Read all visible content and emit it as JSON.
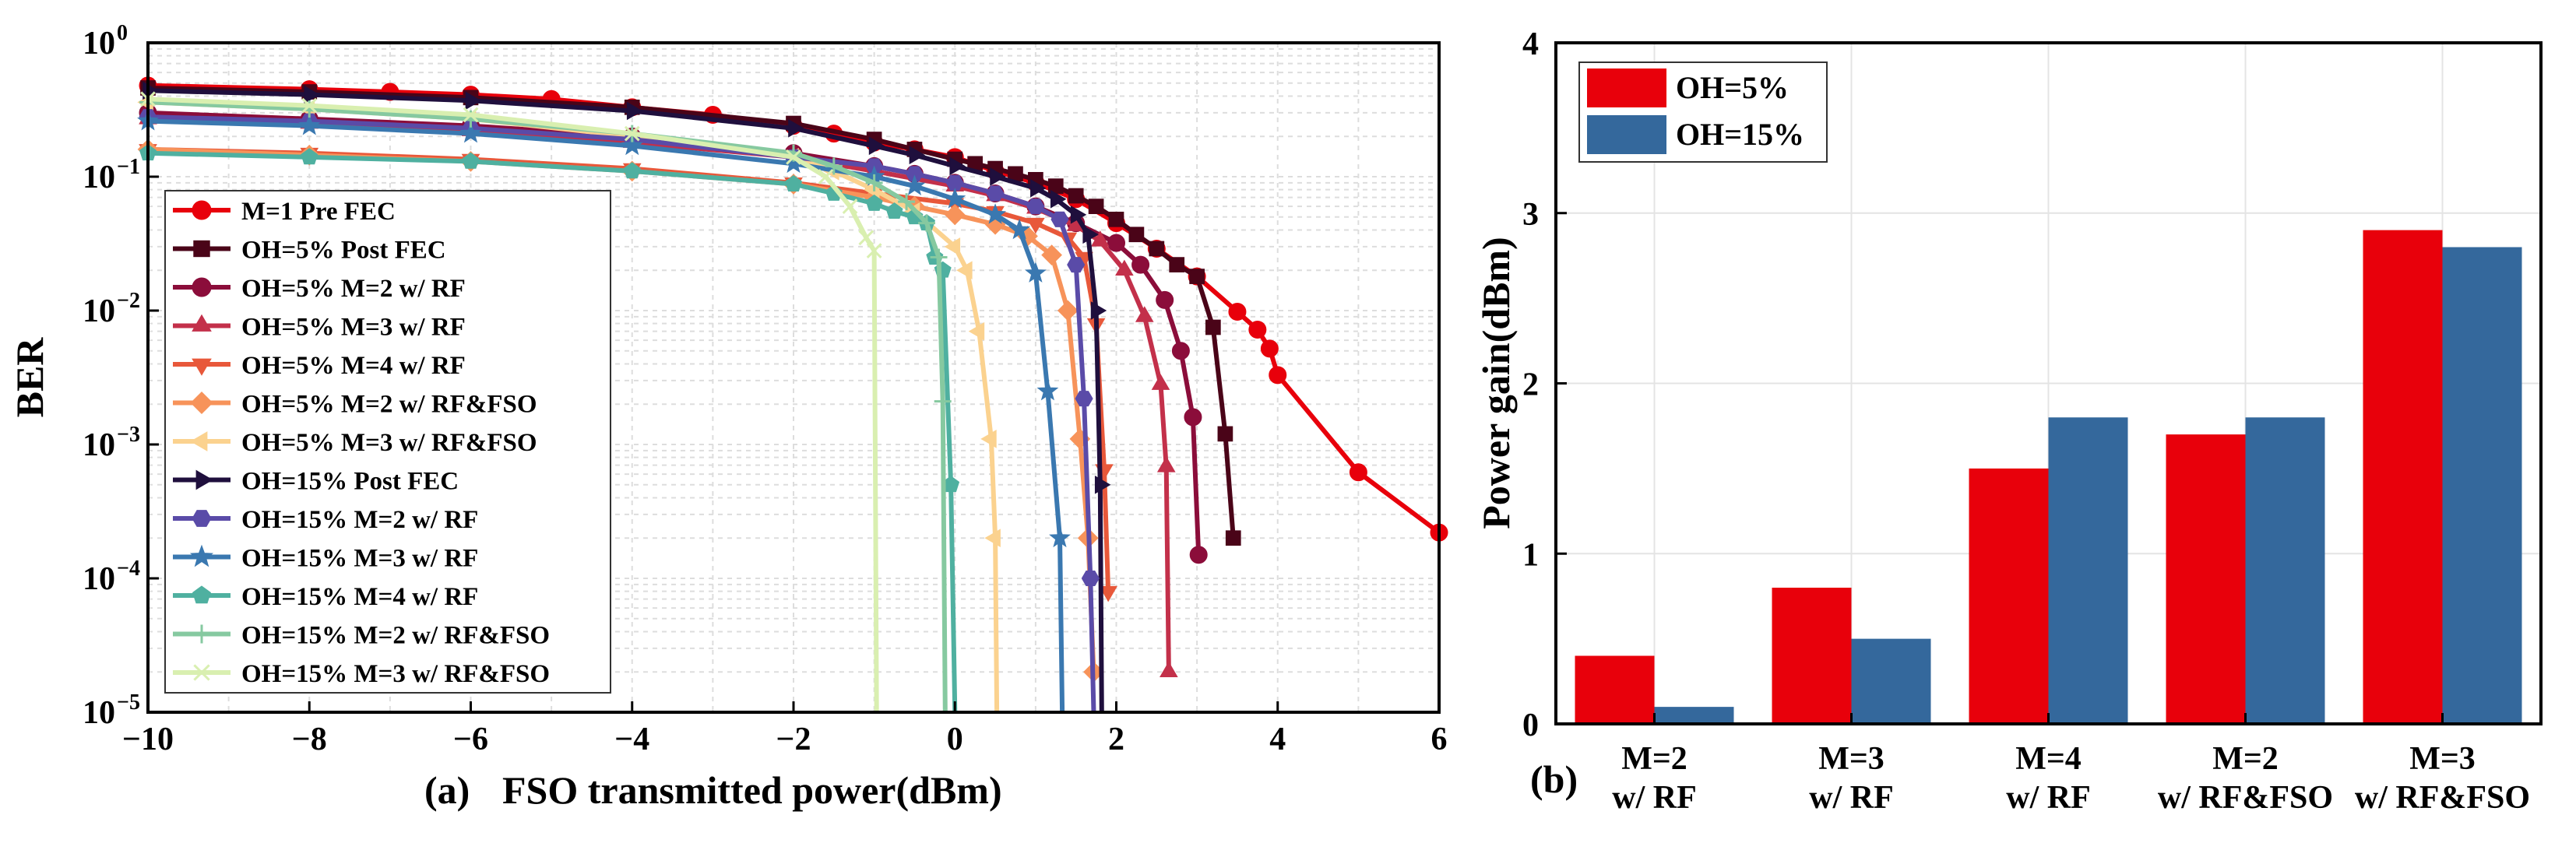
{
  "chart_data": [
    {
      "type": "line",
      "panel_label": "(a)",
      "xlabel": "FSO transmitted power(dBm)",
      "ylabel": "BER",
      "xlim": [
        -10,
        6
      ],
      "ylim_log10": [
        -5,
        0
      ],
      "xticks": [
        -10,
        -8,
        -6,
        -4,
        -2,
        0,
        2,
        4,
        6
      ],
      "xtick_labels": [
        "−10",
        "−8",
        "−6",
        "−4",
        "−2",
        "0",
        "2",
        "4",
        "6"
      ],
      "ytick_bases": [
        "10",
        "10",
        "10",
        "10",
        "10",
        "10"
      ],
      "ytick_exps": [
        "−5",
        "−4",
        "−3",
        "−2",
        "−1",
        "0"
      ],
      "ytick_values_log10": [
        -5,
        -4,
        -3,
        -2,
        -1,
        0
      ],
      "grid": true,
      "legend_position": "left",
      "series": [
        {
          "name": "M=1 Pre FEC",
          "color": "#e8000b",
          "marker": "circle",
          "x": [
            -10,
            -8,
            -7,
            -6,
            -5,
            -4,
            -3,
            -2,
            -1.5,
            -1,
            -0.5,
            0,
            0.5,
            1,
            1.5,
            2,
            2.5,
            3,
            3.5,
            3.75,
            3.9,
            4,
            5,
            6
          ],
          "y": [
            0.48,
            0.45,
            0.43,
            0.41,
            0.38,
            0.33,
            0.29,
            0.24,
            0.21,
            0.18,
            0.16,
            0.14,
            0.11,
            0.09,
            0.068,
            0.045,
            0.029,
            0.018,
            0.0098,
            0.0072,
            0.0052,
            0.0033,
            0.00062,
            0.00022
          ]
        },
        {
          "name": "OH=5% Post FEC",
          "color": "#4a0418",
          "marker": "square",
          "x": [
            -10,
            -8,
            -6,
            -4,
            -2,
            -1,
            -0.5,
            0,
            0.25,
            0.5,
            0.75,
            1,
            1.25,
            1.5,
            1.75,
            2,
            2.25,
            2.5,
            2.75,
            3,
            3.2,
            3.35,
            3.45
          ],
          "y": [
            0.46,
            0.43,
            0.39,
            0.33,
            0.25,
            0.19,
            0.16,
            0.135,
            0.125,
            0.115,
            0.105,
            0.095,
            0.085,
            0.072,
            0.06,
            0.048,
            0.037,
            0.029,
            0.022,
            0.018,
            0.0075,
            0.0012,
            0.0002
          ]
        },
        {
          "name": "OH=5% M=2 w/ RF",
          "color": "#8b0d3a",
          "marker": "circle",
          "x": [
            -10,
            -8,
            -6,
            -4,
            -2,
            -1,
            -0.5,
            0,
            0.5,
            1,
            1.5,
            2,
            2.3,
            2.6,
            2.8,
            2.95,
            3.02
          ],
          "y": [
            0.3,
            0.27,
            0.24,
            0.2,
            0.15,
            0.12,
            0.105,
            0.09,
            0.075,
            0.06,
            0.045,
            0.032,
            0.022,
            0.012,
            0.005,
            0.0016,
            0.00015
          ]
        },
        {
          "name": "OH=5% M=3 w/ RF",
          "color": "#c3304a",
          "marker": "triangle-up",
          "x": [
            -10,
            -8,
            -6,
            -4,
            -2,
            -1,
            0,
            0.5,
            1,
            1.5,
            1.8,
            2.1,
            2.35,
            2.55,
            2.62,
            2.65
          ],
          "y": [
            0.27,
            0.25,
            0.22,
            0.18,
            0.14,
            0.11,
            0.085,
            0.072,
            0.058,
            0.043,
            0.033,
            0.02,
            0.009,
            0.0028,
            0.00068,
            2e-05
          ]
        },
        {
          "name": "OH=5% M=4 w/ RF",
          "color": "#e8583a",
          "marker": "triangle-down",
          "x": [
            -10,
            -8,
            -6,
            -4,
            -2,
            -1,
            0,
            0.5,
            1,
            1.4,
            1.6,
            1.75,
            1.85,
            1.9
          ],
          "y": [
            0.16,
            0.15,
            0.135,
            0.115,
            0.09,
            0.075,
            0.063,
            0.055,
            0.045,
            0.035,
            0.025,
            0.008,
            0.00065,
            8e-05
          ]
        },
        {
          "name": "OH=5% M=2 w/ RF&FSO",
          "color": "#f7935a",
          "marker": "diamond",
          "x": [
            -10,
            -8,
            -6,
            -4,
            -2,
            -1,
            -0.5,
            0,
            0.5,
            0.9,
            1.2,
            1.4,
            1.55,
            1.65,
            1.72
          ],
          "y": [
            0.16,
            0.145,
            0.13,
            0.11,
            0.088,
            0.07,
            0.06,
            0.052,
            0.044,
            0.036,
            0.026,
            0.01,
            0.0011,
            0.0002,
            2e-05
          ]
        },
        {
          "name": "OH=5% M=3 w/ RF&FSO",
          "color": "#fbd28f",
          "marker": "triangle-left",
          "x": [
            -10,
            -8,
            -6,
            -4,
            -2,
            -1.5,
            -1,
            -0.5,
            0,
            0.15,
            0.3,
            0.45,
            0.5,
            0.52
          ],
          "y": [
            0.36,
            0.32,
            0.27,
            0.2,
            0.14,
            0.11,
            0.08,
            0.055,
            0.03,
            0.02,
            0.007,
            0.0011,
            0.0002,
            1e-05
          ]
        },
        {
          "name": "OH=15% Post FEC",
          "color": "#1f0f3d",
          "marker": "triangle-right",
          "x": [
            -10,
            -8,
            -6,
            -4,
            -2,
            -1,
            -0.5,
            0,
            0.5,
            1,
            1.25,
            1.5,
            1.65,
            1.75,
            1.8,
            1.82
          ],
          "y": [
            0.44,
            0.41,
            0.37,
            0.31,
            0.23,
            0.17,
            0.145,
            0.12,
            0.1,
            0.082,
            0.068,
            0.052,
            0.037,
            0.01,
            0.0005,
            1e-05
          ]
        },
        {
          "name": "OH=15% M=2 w/ RF",
          "color": "#5a4ba8",
          "marker": "hexagon",
          "x": [
            -10,
            -8,
            -6,
            -4,
            -2,
            -1,
            -0.5,
            0,
            0.5,
            1,
            1.3,
            1.5,
            1.6,
            1.68,
            1.72
          ],
          "y": [
            0.28,
            0.26,
            0.23,
            0.19,
            0.14,
            0.12,
            0.105,
            0.09,
            0.075,
            0.06,
            0.048,
            0.022,
            0.0022,
            0.0001,
            1e-05
          ]
        },
        {
          "name": "OH=15% M=3 w/ RF",
          "color": "#3a78b0",
          "marker": "star",
          "x": [
            -10,
            -8,
            -6,
            -4,
            -2,
            -1,
            -0.5,
            0,
            0.5,
            0.8,
            1,
            1.15,
            1.3,
            1.33
          ],
          "y": [
            0.26,
            0.24,
            0.21,
            0.17,
            0.125,
            0.1,
            0.085,
            0.068,
            0.052,
            0.04,
            0.019,
            0.0025,
            0.0002,
            1e-05
          ]
        },
        {
          "name": "OH=15% M=4 w/ RF",
          "color": "#4fb0a0",
          "marker": "pentagon",
          "x": [
            -10,
            -8,
            -6,
            -4,
            -2,
            -1.5,
            -1,
            -0.75,
            -0.5,
            -0.35,
            -0.25,
            -0.15,
            -0.05,
            0
          ],
          "y": [
            0.15,
            0.14,
            0.13,
            0.11,
            0.088,
            0.075,
            0.063,
            0.055,
            0.05,
            0.045,
            0.025,
            0.02,
            0.0005,
            1e-05
          ]
        },
        {
          "name": "OH=15% M=2 w/ RF&FSO",
          "color": "#86c9a0",
          "marker": "plus",
          "x": [
            -10,
            -8,
            -6,
            -4,
            -2,
            -1.5,
            -1,
            -0.6,
            -0.35,
            -0.2,
            -0.15,
            -0.12
          ],
          "y": [
            0.36,
            0.32,
            0.27,
            0.21,
            0.15,
            0.12,
            0.09,
            0.065,
            0.045,
            0.025,
            0.0021,
            1e-05
          ]
        },
        {
          "name": "OH=15% M=3 w/ RF&FSO",
          "color": "#d9efb0",
          "marker": "x",
          "x": [
            -10,
            -8,
            -6,
            -4,
            -2,
            -1.6,
            -1.3,
            -1.1,
            -1.0,
            -0.97
          ],
          "y": [
            0.38,
            0.34,
            0.29,
            0.21,
            0.14,
            0.1,
            0.06,
            0.035,
            0.028,
            1e-05
          ]
        }
      ]
    },
    {
      "type": "bar",
      "panel_label": "(b)",
      "ylabel": "Power gain(dBm)",
      "ylim": [
        0,
        4
      ],
      "yticks": [
        0,
        1,
        2,
        3,
        4
      ],
      "ytick_labels": [
        "0",
        "1",
        "2",
        "3",
        "4"
      ],
      "grid": true,
      "legend_position": "top-left",
      "categories": [
        [
          "M=2",
          "w/ RF"
        ],
        [
          "M=3",
          "w/ RF"
        ],
        [
          "M=4",
          "w/ RF"
        ],
        [
          "M=2",
          "w/ RF&FSO"
        ],
        [
          "M=3",
          "w/ RF&FSO"
        ]
      ],
      "series": [
        {
          "name": "OH=5%",
          "color": "#e8000b",
          "values": [
            0.4,
            0.8,
            1.5,
            1.7,
            2.9
          ]
        },
        {
          "name": "OH=15%",
          "color": "#34689c",
          "values": [
            0.1,
            0.5,
            1.8,
            1.8,
            2.8
          ]
        }
      ]
    }
  ]
}
